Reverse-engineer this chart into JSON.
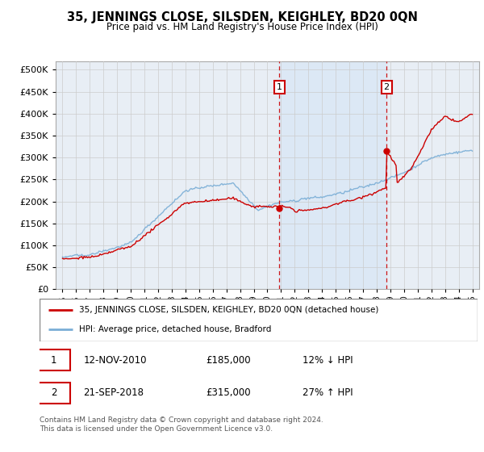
{
  "title": "35, JENNINGS CLOSE, SILSDEN, KEIGHLEY, BD20 0QN",
  "subtitle": "Price paid vs. HM Land Registry's House Price Index (HPI)",
  "house_label": "35, JENNINGS CLOSE, SILSDEN, KEIGHLEY, BD20 0QN (detached house)",
  "hpi_label": "HPI: Average price, detached house, Bradford",
  "transaction1": {
    "date": "12-NOV-2010",
    "price": "£185,000",
    "pct": "12% ↓ HPI"
  },
  "transaction2": {
    "date": "21-SEP-2018",
    "price": "£315,000",
    "pct": "27% ↑ HPI"
  },
  "t1_year": 2010.87,
  "t2_year": 2018.72,
  "t1_price": 185000,
  "t2_price": 315000,
  "house_color": "#cc0000",
  "hpi_color": "#7aaed6",
  "dashed_color": "#cc0000",
  "shade_color": "#dce8f5",
  "background_color": "#e8eef5",
  "plot_bg": "#ffffff",
  "ylim": [
    0,
    520000
  ],
  "xlim_start": 1994.5,
  "xlim_end": 2025.5,
  "footer": "Contains HM Land Registry data © Crown copyright and database right 2024.\nThis data is licensed under the Open Government Licence v3.0."
}
